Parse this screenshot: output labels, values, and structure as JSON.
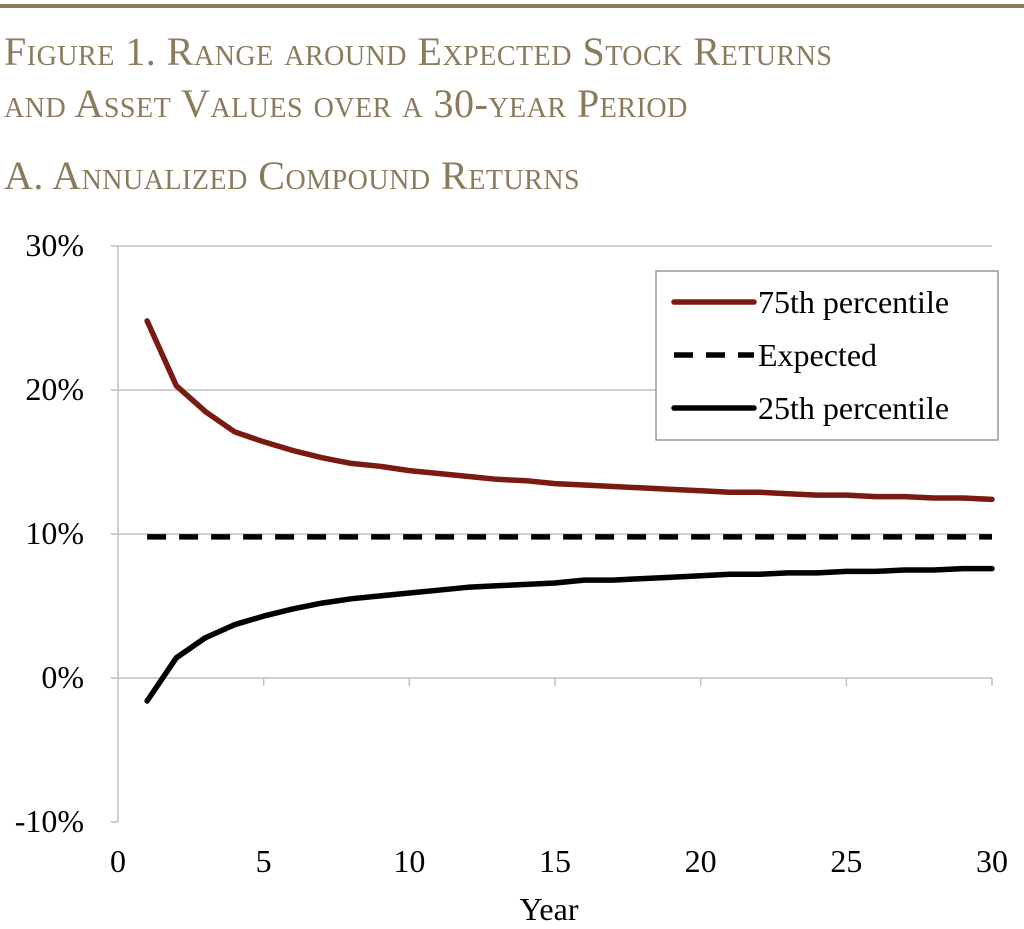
{
  "colors": {
    "title": "#8a7b5c",
    "rule": "#8a7b5c",
    "axis": "#bfbfbf",
    "series_75": "#7b1a10",
    "series_expected": "#000000",
    "series_25": "#000000",
    "text": "#000000"
  },
  "figure": {
    "title_line1": "Figure 1. Range around Expected Stock Returns",
    "title_line2": "and Asset Values over a 30-year Period",
    "panel_title": "A. Annualized Compound Returns"
  },
  "chart_data": {
    "type": "line",
    "xlabel": "Year",
    "ylabel": "",
    "xlim": [
      0,
      30
    ],
    "ylim": [
      -10,
      30
    ],
    "x_ticks": [
      0,
      5,
      10,
      15,
      20,
      25,
      30
    ],
    "x_tick_labels": [
      "0",
      "5",
      "10",
      "15",
      "20",
      "25",
      "30"
    ],
    "y_ticks": [
      -10,
      0,
      10,
      20,
      30
    ],
    "y_tick_labels": [
      "-10%",
      "0%",
      "10%",
      "20%",
      "30%"
    ],
    "grid": "horizontal at 10%, 20%, 30%",
    "legend_position": "top-right",
    "x": [
      1,
      2,
      3,
      4,
      5,
      6,
      7,
      8,
      9,
      10,
      11,
      12,
      13,
      14,
      15,
      16,
      17,
      18,
      19,
      20,
      21,
      22,
      23,
      24,
      25,
      26,
      27,
      28,
      29,
      30
    ],
    "series": [
      {
        "name": "75th percentile",
        "style": "solid",
        "color": "#7b1a10",
        "values": [
          24.8,
          20.3,
          18.5,
          17.1,
          16.4,
          15.8,
          15.3,
          14.9,
          14.7,
          14.4,
          14.2,
          14.0,
          13.8,
          13.7,
          13.5,
          13.4,
          13.3,
          13.2,
          13.1,
          13.0,
          12.9,
          12.9,
          12.8,
          12.7,
          12.7,
          12.6,
          12.6,
          12.5,
          12.5,
          12.4
        ]
      },
      {
        "name": "Expected",
        "style": "dashed",
        "color": "#000000",
        "values": [
          9.8,
          9.8,
          9.8,
          9.8,
          9.8,
          9.8,
          9.8,
          9.8,
          9.8,
          9.8,
          9.8,
          9.8,
          9.8,
          9.8,
          9.8,
          9.8,
          9.8,
          9.8,
          9.8,
          9.8,
          9.8,
          9.8,
          9.8,
          9.8,
          9.8,
          9.8,
          9.8,
          9.8,
          9.8,
          9.8
        ]
      },
      {
        "name": "25th percentile",
        "style": "solid",
        "color": "#000000",
        "values": [
          -1.6,
          1.4,
          2.8,
          3.7,
          4.3,
          4.8,
          5.2,
          5.5,
          5.7,
          5.9,
          6.1,
          6.3,
          6.4,
          6.5,
          6.6,
          6.8,
          6.8,
          6.9,
          7.0,
          7.1,
          7.2,
          7.2,
          7.3,
          7.3,
          7.4,
          7.4,
          7.5,
          7.5,
          7.6,
          7.6
        ]
      }
    ]
  }
}
